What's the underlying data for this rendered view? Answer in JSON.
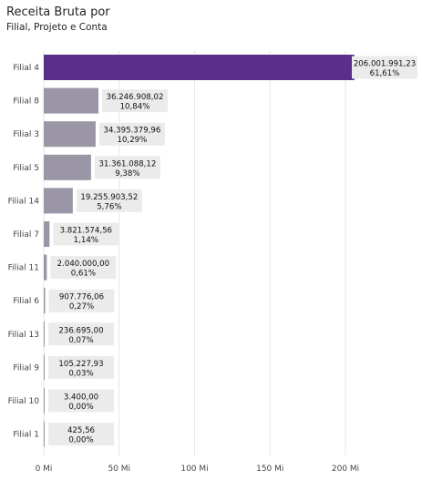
{
  "title": "Receita Bruta por",
  "subtitle": "Filial, Projeto e Conta",
  "chart_data": {
    "type": "bar",
    "orientation": "horizontal",
    "categories": [
      "Filial 4",
      "Filial 8",
      "Filial 3",
      "Filial 5",
      "Filial 14",
      "Filial 7",
      "Filial 11",
      "Filial 6",
      "Filial 13",
      "Filial 9",
      "Filial 10",
      "Filial 1"
    ],
    "values": [
      206001991.23,
      36246908.02,
      34395379.96,
      31361088.12,
      19255903.52,
      3821574.56,
      2040000.0,
      907776.06,
      236695.0,
      105227.93,
      3400.0,
      425.56
    ],
    "value_labels": [
      "206.001.991,23",
      "36.246.908,02",
      "34.395.379,96",
      "31.361.088,12",
      "19.255.903,52",
      "3.821.574,56",
      "2.040.000,00",
      "907.776,06",
      "236.695,00",
      "105.227,93",
      "3.400,00",
      "425,56"
    ],
    "percent_labels": [
      "61,61%",
      "10,84%",
      "10,29%",
      "9,38%",
      "5,76%",
      "1,14%",
      "0,61%",
      "0,27%",
      "0,07%",
      "0,03%",
      "0,00%",
      "0,00%"
    ],
    "xlim": [
      0,
      250000000
    ],
    "x_ticks": [
      0,
      50000000,
      100000000,
      150000000,
      200000000
    ],
    "x_tick_labels": [
      "0 Mi",
      "50 Mi",
      "100 Mi",
      "150 Mi",
      "200 Mi"
    ],
    "highlight_index": 0,
    "colors": {
      "highlight": "#5B2E8C",
      "default": "#9A96A5",
      "grid": "#E6E6E6",
      "label_bg": "#EBEBEB"
    },
    "grid": true,
    "legend": "none"
  }
}
